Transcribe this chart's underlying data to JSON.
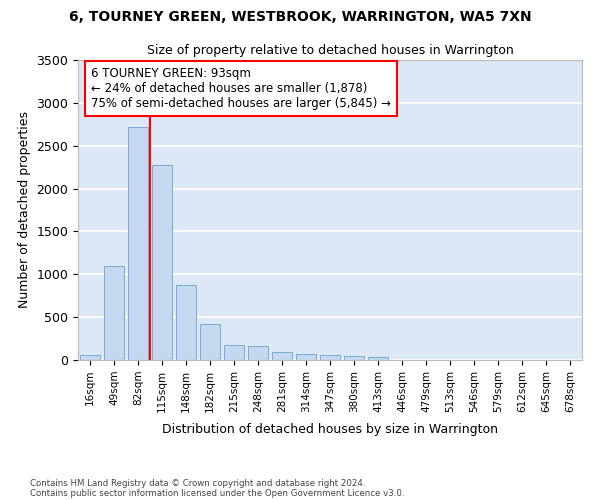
{
  "title": "6, TOURNEY GREEN, WESTBROOK, WARRINGTON, WA5 7XN",
  "subtitle": "Size of property relative to detached houses in Warrington",
  "xlabel": "Distribution of detached houses by size in Warrington",
  "ylabel": "Number of detached properties",
  "bar_color": "#c5d8f0",
  "bar_edge_color": "#7aadd4",
  "bg_color": "#dce8f5",
  "grid_color": "#ffffff",
  "categories": [
    "16sqm",
    "49sqm",
    "82sqm",
    "115sqm",
    "148sqm",
    "182sqm",
    "215sqm",
    "248sqm",
    "281sqm",
    "314sqm",
    "347sqm",
    "380sqm",
    "413sqm",
    "446sqm",
    "479sqm",
    "513sqm",
    "546sqm",
    "579sqm",
    "612sqm",
    "645sqm",
    "678sqm"
  ],
  "values": [
    55,
    1100,
    2720,
    2280,
    880,
    415,
    170,
    165,
    95,
    65,
    55,
    45,
    30,
    3,
    3,
    0,
    0,
    0,
    0,
    0,
    0
  ],
  "red_line_x": 2.5,
  "annotation_title": "6 TOURNEY GREEN: 93sqm",
  "annotation_line1": "← 24% of detached houses are smaller (1,878)",
  "annotation_line2": "75% of semi-detached houses are larger (5,845) →",
  "ylim": [
    0,
    3500
  ],
  "yticks": [
    0,
    500,
    1000,
    1500,
    2000,
    2500,
    3000,
    3500
  ],
  "footer1": "Contains HM Land Registry data © Crown copyright and database right 2024.",
  "footer2": "Contains public sector information licensed under the Open Government Licence v3.0."
}
